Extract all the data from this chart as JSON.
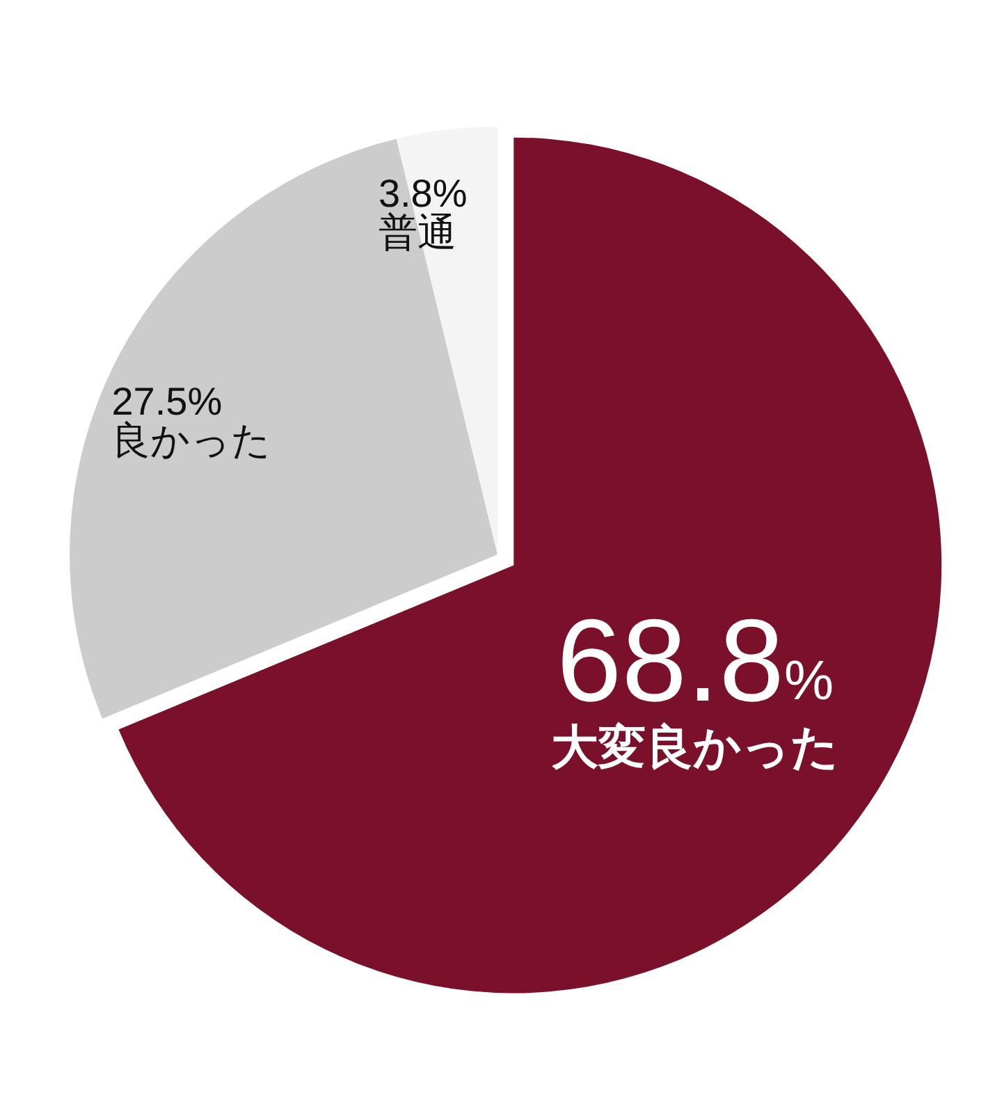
{
  "chart_data": {
    "type": "pie",
    "categories": [
      "大変良かった",
      "良かった",
      "普通"
    ],
    "values": [
      68.8,
      27.5,
      3.8
    ],
    "colors": [
      "#7a1029",
      "#cccccc",
      "#f4f4f4"
    ],
    "value_labels": [
      "68.8%",
      "27.5%",
      "3.8%"
    ]
  }
}
